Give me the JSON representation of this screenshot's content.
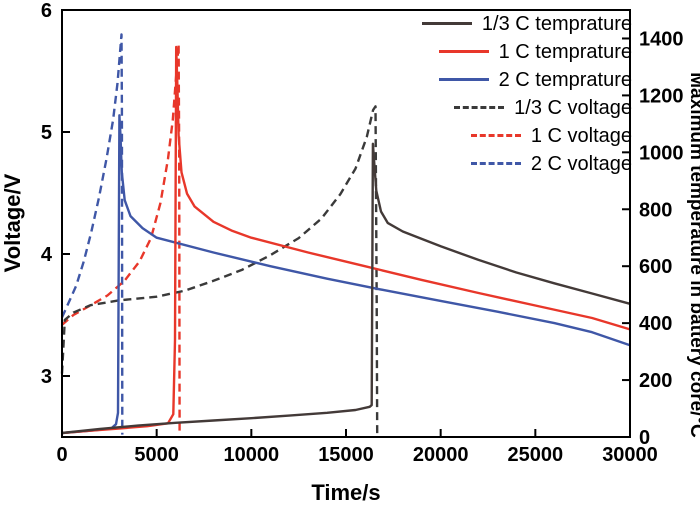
{
  "chart_data": {
    "type": "line",
    "title": "",
    "xlabel": "Time/s",
    "ylabel_left": "Voltage/V",
    "ylabel_right": "Maximum temperature in battery core/°C",
    "xlim": [
      0,
      30000
    ],
    "ylim_left": [
      2.5,
      6
    ],
    "ylim_right": [
      0,
      1500
    ],
    "xticks": [
      0,
      5000,
      10000,
      15000,
      20000,
      25000,
      30000
    ],
    "yticks_left": [
      3,
      4,
      5,
      6
    ],
    "yticks_right": [
      0,
      200,
      400,
      600,
      800,
      1000,
      1200,
      1400
    ],
    "grid": false,
    "legend_position": "top-right-inside",
    "axis_color": "#000000",
    "background_color": "#ffffff",
    "series": [
      {
        "name": "1/3 C temprature",
        "color": "#433a38",
        "style": "solid",
        "axis": "right",
        "points": [
          [
            0,
            14
          ],
          [
            2000,
            28
          ],
          [
            4000,
            40
          ],
          [
            6000,
            50
          ],
          [
            8000,
            58
          ],
          [
            10000,
            66
          ],
          [
            12000,
            75
          ],
          [
            14000,
            85
          ],
          [
            15500,
            95
          ],
          [
            16250,
            106
          ],
          [
            16360,
            112
          ],
          [
            16420,
            1030
          ],
          [
            16500,
            955
          ],
          [
            16600,
            865
          ],
          [
            16850,
            792
          ],
          [
            17200,
            752
          ],
          [
            18000,
            722
          ],
          [
            19000,
            696
          ],
          [
            20000,
            670
          ],
          [
            22000,
            622
          ],
          [
            24000,
            578
          ],
          [
            26000,
            540
          ],
          [
            28000,
            504
          ],
          [
            30000,
            468
          ]
        ]
      },
      {
        "name": "1 C temprature",
        "color": "#e8372a",
        "style": "solid",
        "axis": "right",
        "points": [
          [
            0,
            14
          ],
          [
            1500,
            22
          ],
          [
            3000,
            30
          ],
          [
            4500,
            38
          ],
          [
            5600,
            48
          ],
          [
            5880,
            80
          ],
          [
            5970,
            340
          ],
          [
            6030,
            1370
          ],
          [
            6090,
            1245
          ],
          [
            6160,
            1060
          ],
          [
            6310,
            930
          ],
          [
            6600,
            855
          ],
          [
            7000,
            810
          ],
          [
            8000,
            756
          ],
          [
            9000,
            724
          ],
          [
            10000,
            700
          ],
          [
            13000,
            648
          ],
          [
            16000,
            600
          ],
          [
            19000,
            552
          ],
          [
            22000,
            506
          ],
          [
            25000,
            462
          ],
          [
            28000,
            418
          ],
          [
            30000,
            378
          ]
        ]
      },
      {
        "name": "2 C temprature",
        "color": "#3f57a7",
        "style": "solid",
        "axis": "right",
        "points": [
          [
            0,
            14
          ],
          [
            1500,
            22
          ],
          [
            2600,
            30
          ],
          [
            2850,
            45
          ],
          [
            2960,
            85
          ],
          [
            3030,
            1130
          ],
          [
            3090,
            1058
          ],
          [
            3160,
            930
          ],
          [
            3310,
            832
          ],
          [
            3620,
            776
          ],
          [
            4250,
            734
          ],
          [
            5000,
            700
          ],
          [
            8000,
            648
          ],
          [
            11000,
            600
          ],
          [
            14000,
            556
          ],
          [
            17000,
            516
          ],
          [
            20000,
            478
          ],
          [
            23000,
            440
          ],
          [
            26000,
            400
          ],
          [
            28000,
            368
          ],
          [
            30000,
            322
          ]
        ]
      },
      {
        "name": "1/3 C voltage",
        "color": "#3a3a3a",
        "style": "dashed",
        "axis": "left",
        "points": [
          [
            0,
            3.02
          ],
          [
            150,
            3.46
          ],
          [
            600,
            3.52
          ],
          [
            1500,
            3.58
          ],
          [
            3000,
            3.62
          ],
          [
            5000,
            3.65
          ],
          [
            6500,
            3.7
          ],
          [
            8000,
            3.78
          ],
          [
            9500,
            3.87
          ],
          [
            11000,
            3.99
          ],
          [
            12500,
            4.13
          ],
          [
            13700,
            4.29
          ],
          [
            14700,
            4.49
          ],
          [
            15500,
            4.7
          ],
          [
            16100,
            4.96
          ],
          [
            16430,
            5.18
          ],
          [
            16560,
            5.21
          ],
          [
            16620,
            3.6
          ],
          [
            16650,
            2.52
          ]
        ]
      },
      {
        "name": "1 C voltage",
        "color": "#e8372a",
        "style": "dashed",
        "axis": "left",
        "points": [
          [
            0,
            3.42
          ],
          [
            600,
            3.5
          ],
          [
            1400,
            3.57
          ],
          [
            2400,
            3.66
          ],
          [
            3300,
            3.78
          ],
          [
            4100,
            3.94
          ],
          [
            4700,
            4.13
          ],
          [
            5200,
            4.42
          ],
          [
            5600,
            4.78
          ],
          [
            5850,
            5.1
          ],
          [
            6060,
            5.52
          ],
          [
            6160,
            5.72
          ],
          [
            6190,
            4.8
          ],
          [
            6210,
            2.52
          ]
        ]
      },
      {
        "name": "2 C voltage",
        "color": "#3f57a7",
        "style": "dashed",
        "axis": "left",
        "points": [
          [
            0,
            3.48
          ],
          [
            350,
            3.6
          ],
          [
            750,
            3.74
          ],
          [
            1150,
            3.94
          ],
          [
            1550,
            4.18
          ],
          [
            1950,
            4.46
          ],
          [
            2350,
            4.78
          ],
          [
            2700,
            5.1
          ],
          [
            2930,
            5.4
          ],
          [
            3070,
            5.66
          ],
          [
            3140,
            5.8
          ],
          [
            3165,
            5.2
          ],
          [
            3185,
            2.52
          ]
        ]
      }
    ]
  }
}
